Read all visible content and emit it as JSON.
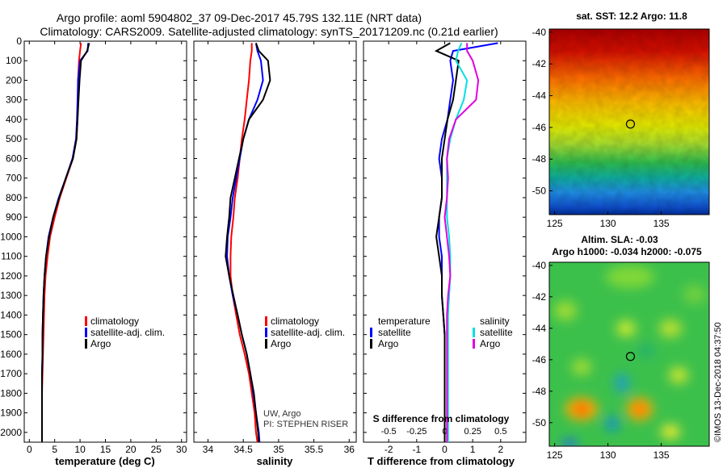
{
  "title": {
    "line1": "Argo profile: aoml 5904802_37 09-Dec-2017 45.79S 132.11E (NRT data)",
    "line2": "Climatology: CARS2009. Satellite-adjusted climatology: synTS_20171209.nc (0.21d earlier)"
  },
  "colors": {
    "climatology": "#ff0000",
    "satellite": "#0000ff",
    "argo": "#000000",
    "cyan": "#00e0e0",
    "magenta": "#e000e0"
  },
  "depth_axis": {
    "ylim": [
      2050,
      0
    ],
    "ticks": [
      0,
      100,
      200,
      300,
      400,
      500,
      600,
      700,
      800,
      900,
      1000,
      1100,
      1200,
      1300,
      1400,
      1500,
      1600,
      1700,
      1800,
      1900,
      2000
    ]
  },
  "chart_data": [
    {
      "type": "line",
      "id": "temperature",
      "xlabel": "temperature (deg C)",
      "xlim": [
        -1,
        31
      ],
      "xticks": [
        0,
        5,
        10,
        15,
        20,
        25,
        30
      ],
      "legend": [
        "climatology",
        "satellite-adj. clim.",
        "Argo"
      ],
      "series": [
        {
          "name": "climatology",
          "color": "red",
          "x": [
            10.2,
            10.0,
            9.8,
            9.6,
            9.6,
            9.5,
            9.3,
            8.6,
            7.3,
            6.0,
            5.0,
            4.1,
            3.6,
            3.2,
            3.0,
            2.9,
            2.8,
            2.7,
            2.6,
            2.5,
            2.5
          ],
          "depth": [
            10,
            50,
            100,
            200,
            300,
            400,
            500,
            600,
            700,
            800,
            900,
            1000,
            1100,
            1200,
            1300,
            1400,
            1500,
            1600,
            1700,
            1800,
            2050
          ]
        },
        {
          "name": "satellite-adj. clim.",
          "color": "blue",
          "x": [
            11.6,
            11.5,
            10.0,
            9.6,
            9.5,
            9.4,
            9.2,
            8.5,
            7.2,
            5.8,
            4.7,
            3.8,
            3.3,
            3.0,
            2.8,
            2.7,
            2.6,
            2.6,
            2.5,
            2.5,
            2.5
          ],
          "depth": [
            10,
            50,
            100,
            200,
            300,
            400,
            500,
            600,
            700,
            800,
            900,
            1000,
            1100,
            1200,
            1300,
            1400,
            1500,
            1600,
            1700,
            1800,
            2050
          ]
        },
        {
          "name": "Argo",
          "color": "black",
          "x": [
            11.8,
            11.4,
            10.2,
            9.9,
            9.7,
            9.5,
            9.3,
            8.6,
            7.2,
            5.9,
            4.7,
            3.9,
            3.3,
            3.0,
            2.8,
            2.7,
            2.6,
            2.6,
            2.5,
            2.5,
            2.5
          ],
          "depth": [
            10,
            50,
            100,
            200,
            300,
            400,
            500,
            600,
            700,
            800,
            900,
            1000,
            1100,
            1200,
            1300,
            1400,
            1500,
            1600,
            1700,
            1800,
            2050
          ]
        }
      ]
    },
    {
      "type": "line",
      "id": "salinity",
      "xlabel": "salinity",
      "xlim": [
        33.8,
        36.1
      ],
      "xticks": [
        34,
        34.5,
        35,
        35.5,
        36
      ],
      "xticklabels": [
        "34",
        "34.5",
        "35",
        "35.5",
        "36"
      ],
      "legend": [
        "climatology",
        "satellite-adj. clim.",
        "Argo"
      ],
      "series": [
        {
          "name": "climatology",
          "color": "red",
          "x": [
            34.62,
            34.62,
            34.6,
            34.58,
            34.55,
            34.52,
            34.48,
            34.45,
            34.42,
            34.38,
            34.36,
            34.33,
            34.32,
            34.32,
            34.35,
            34.4,
            34.45,
            34.52,
            34.58,
            34.62,
            34.66,
            34.68,
            34.7
          ],
          "depth": [
            10,
            50,
            100,
            200,
            300,
            400,
            500,
            600,
            700,
            800,
            900,
            1000,
            1100,
            1200,
            1300,
            1400,
            1500,
            1600,
            1700,
            1800,
            1900,
            2000,
            2050
          ]
        },
        {
          "name": "satellite-adj. clim.",
          "color": "blue",
          "x": [
            34.68,
            34.7,
            34.75,
            34.78,
            34.7,
            34.58,
            34.5,
            34.45,
            34.4,
            34.35,
            34.32,
            34.28,
            34.27,
            34.3,
            34.35,
            34.42,
            34.48,
            34.55,
            34.6,
            34.64,
            34.68,
            34.72,
            34.73
          ],
          "depth": [
            10,
            50,
            100,
            200,
            300,
            400,
            500,
            600,
            700,
            800,
            900,
            1000,
            1100,
            1200,
            1300,
            1400,
            1500,
            1600,
            1700,
            1800,
            1900,
            2000,
            2050
          ]
        },
        {
          "name": "Argo",
          "color": "black",
          "x": [
            34.68,
            34.72,
            34.85,
            34.88,
            34.78,
            34.58,
            34.5,
            34.44,
            34.38,
            34.32,
            34.3,
            34.27,
            34.25,
            34.3,
            34.36,
            34.42,
            34.48,
            34.55,
            34.6,
            34.65,
            34.68,
            34.71,
            34.72
          ],
          "depth": [
            10,
            50,
            100,
            200,
            300,
            400,
            500,
            600,
            700,
            800,
            900,
            1000,
            1100,
            1200,
            1300,
            1400,
            1500,
            1600,
            1700,
            1800,
            1900,
            2000,
            2050
          ]
        }
      ]
    },
    {
      "type": "line",
      "id": "difference",
      "xlabel": "T difference from climatology",
      "xlim": [
        -2.9,
        2.9
      ],
      "xticks": [
        -2,
        -1,
        0,
        1,
        2
      ],
      "xticklabels": [
        "-2",
        "-1",
        "0",
        "1",
        "2"
      ],
      "top_label": "S difference from climatology",
      "sticks": [
        -0.5,
        -0.25,
        0,
        0.25,
        0.5
      ],
      "sticklabels": [
        "-0.5",
        "-0.25",
        "0",
        "0.25",
        "0.5"
      ],
      "legend_left_title": "temperature",
      "legend_right_title": "salinity",
      "legend_left": [
        "satellite",
        "Argo"
      ],
      "legend_right": [
        "satellite",
        "Argo"
      ],
      "series": [
        {
          "name": "T satellite",
          "color": "blue",
          "x": [
            1.9,
            0.3,
            0.2,
            0.3,
            0.2,
            0.1,
            -0.1,
            -0.2,
            -0.1,
            -0.1,
            -0.2,
            -0.2,
            -0.1,
            -0.1,
            -0.1,
            -0.05,
            0,
            0,
            0,
            0,
            0
          ],
          "depth": [
            10,
            50,
            100,
            200,
            300,
            400,
            500,
            600,
            700,
            800,
            900,
            1000,
            1100,
            1200,
            1300,
            1400,
            1500,
            1600,
            1700,
            1800,
            2050
          ]
        },
        {
          "name": "T Argo",
          "color": "black",
          "x": [
            0.2,
            -0.3,
            0.5,
            0.4,
            0.3,
            0.1,
            0,
            -0.1,
            -0.1,
            -0.1,
            -0.2,
            -0.3,
            -0.2,
            -0.1,
            -0.1,
            -0.05,
            0,
            0,
            0,
            0,
            0
          ],
          "depth": [
            10,
            50,
            100,
            200,
            300,
            400,
            500,
            600,
            700,
            800,
            900,
            1000,
            1100,
            1200,
            1300,
            1400,
            1500,
            1600,
            1700,
            1800,
            2050
          ]
        },
        {
          "name": "S satellite",
          "color": "cyan",
          "x": [
            0.15,
            0.12,
            0.1,
            0.2,
            0.17,
            0.1,
            0.05,
            0.02,
            0.02,
            0.02,
            0.02,
            0.04,
            0.05,
            0.05,
            0.04,
            0.03,
            0.03,
            0.03,
            0.03,
            0.03,
            0.03
          ],
          "depth": [
            10,
            50,
            100,
            200,
            300,
            400,
            500,
            600,
            700,
            800,
            900,
            1000,
            1100,
            1200,
            1300,
            1400,
            1500,
            1600,
            1700,
            1800,
            2050
          ]
        },
        {
          "name": "S Argo",
          "color": "magenta",
          "x": [
            0.2,
            0.2,
            0.25,
            0.3,
            0.28,
            0.1,
            0.04,
            0.02,
            0.03,
            0.02,
            0.0,
            0.02,
            0.04,
            0.05,
            0.03,
            0.02,
            0.02,
            0.02,
            0.02,
            0.02,
            0.02
          ],
          "depth": [
            10,
            50,
            100,
            200,
            300,
            400,
            500,
            600,
            700,
            800,
            900,
            1000,
            1100,
            1200,
            1300,
            1400,
            1500,
            1600,
            1700,
            1800,
            2050
          ]
        }
      ]
    },
    {
      "type": "heatmap",
      "id": "sst_map",
      "title": "sat. SST: 12.2  Argo: 11.8",
      "xlim": [
        124.5,
        139.5
      ],
      "ylim": [
        -51.5,
        -39.8
      ],
      "xticks": [
        125,
        130,
        135
      ],
      "yticks": [
        -40,
        -42,
        -44,
        -46,
        -48,
        -50
      ],
      "marker": {
        "lon": 132.11,
        "lat": -45.79
      }
    },
    {
      "type": "heatmap",
      "id": "sla_map",
      "title1": "Altim. SLA: -0.03",
      "title2": "Argo h1000: -0.034 h2000: -0.075",
      "xlim": [
        124.5,
        139.5
      ],
      "ylim": [
        -51.5,
        -39.8
      ],
      "xticks": [
        125,
        130,
        135
      ],
      "yticks": [
        -40,
        -42,
        -44,
        -46,
        -48,
        -50
      ],
      "marker": {
        "lon": 132.11,
        "lat": -45.79
      }
    }
  ],
  "text": {
    "source1": "UW, Argo",
    "source2": "PI: STEPHEN RISER",
    "watermark": "©IMOS 13-Dec-2018 04:37:50"
  }
}
